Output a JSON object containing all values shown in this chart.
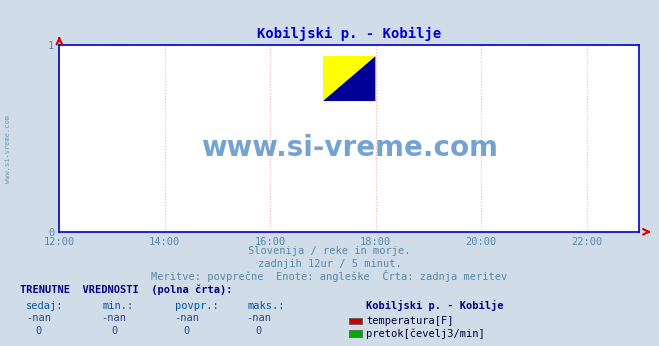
{
  "title": "Kobiljski p. - Kobilje",
  "title_color": "#0000cc",
  "bg_color": "#d0dce8",
  "plot_bg_color": "#ffffff",
  "grid_color": "#ffb0b0",
  "axis_color": "#0000cc",
  "arrow_color": "#cc0000",
  "watermark_text": "www.si-vreme.com",
  "watermark_color": "#6699cc",
  "sub1": "Slovenija / reke in morje.",
  "sub2": "zadnjih 12ur / 5 minut.",
  "sub3": "Meritve: povprečne  Enote: angleške  Črta: zadnja meritev",
  "sub_color": "#5588aa",
  "ylabel_text": "www.si-vreme.com",
  "ylabel_color": "#7799aa",
  "xtick_labels": [
    "12:00",
    "14:00",
    "16:00",
    "18:00",
    "20:00",
    "22:00"
  ],
  "xtick_positions": [
    0.0,
    2.0,
    4.0,
    6.0,
    8.0,
    10.0
  ],
  "xlim": [
    0,
    11.0
  ],
  "ylim": [
    0,
    1.0
  ],
  "ytick_labels": [
    "0",
    "1"
  ],
  "ytick_positions": [
    0.0,
    1.0
  ],
  "bottom_header": "TRENUTNE  VREDNOSTI  (polna črta):",
  "bottom_header_color": "#000080",
  "col_headers": [
    "sedaj:",
    "min.:",
    "povpr.:",
    "maks.:"
  ],
  "col_header_color": "#0055aa",
  "row1_vals": [
    "-nan",
    "-nan",
    "-nan",
    "-nan"
  ],
  "row2_vals": [
    "0",
    "0",
    "0",
    "0"
  ],
  "row_color": "#334488",
  "station_label": "Kobiljski p. - Kobilje",
  "station_label_color": "#000080",
  "legend_items": [
    {
      "label": "temperatura[F]",
      "color": "#cc0000"
    },
    {
      "label": "pretok[čevelj3/min]",
      "color": "#00aa00"
    }
  ],
  "legend_label_color": "#000033",
  "logo": {
    "yellow": "#ffff00",
    "cyan": "#00ffff",
    "blue": "#000099"
  }
}
